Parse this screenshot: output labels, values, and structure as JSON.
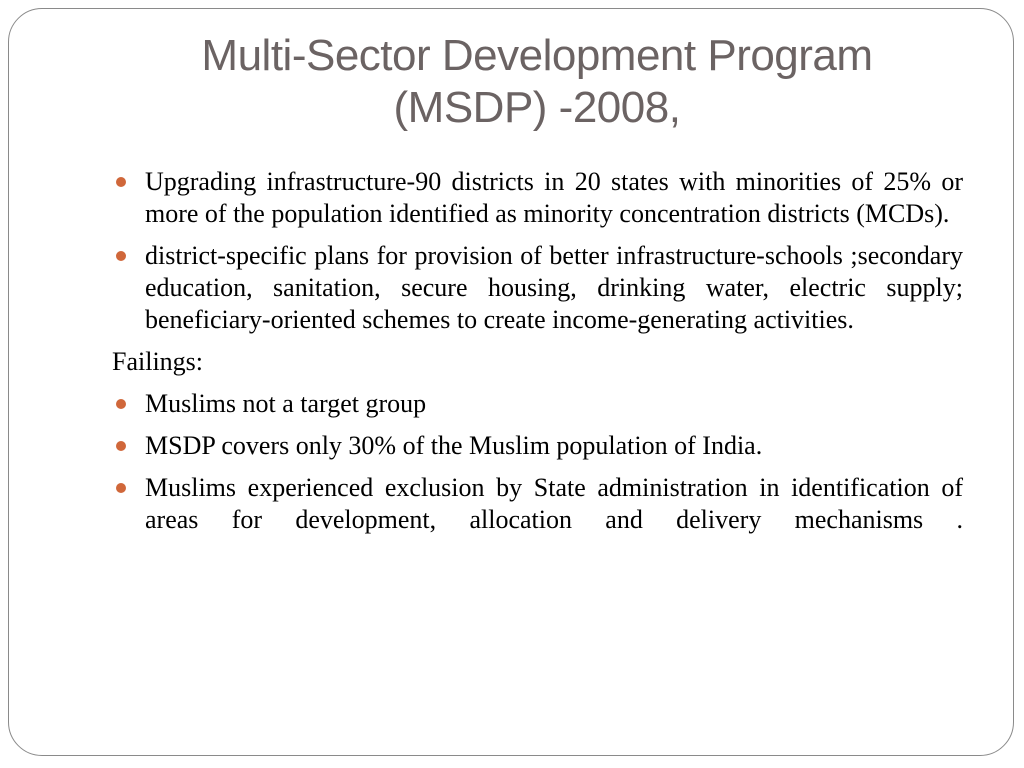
{
  "slide": {
    "title_lines": [
      "Multi-Sector Development Program",
      "(MSDP) -2008,"
    ],
    "bullets_1": [
      "Upgrading infrastructure-90 districts in 20 states with minorities of 25% or more of the population identified as minority concentration districts (MCDs).",
      "district-specific plans for provision of better infrastructure-schools ;secondary education, sanitation, secure housing, drinking water, electric supply; beneficiary-oriented schemes to create income-generating activities."
    ],
    "subheading": "Failings:",
    "bullets_2": [
      "Muslims not a target group",
      "MSDP covers only 30% of the Muslim population of India.",
      "Muslims experienced exclusion by State administration in identification of areas for development, allocation and delivery mechanisms ."
    ]
  }
}
